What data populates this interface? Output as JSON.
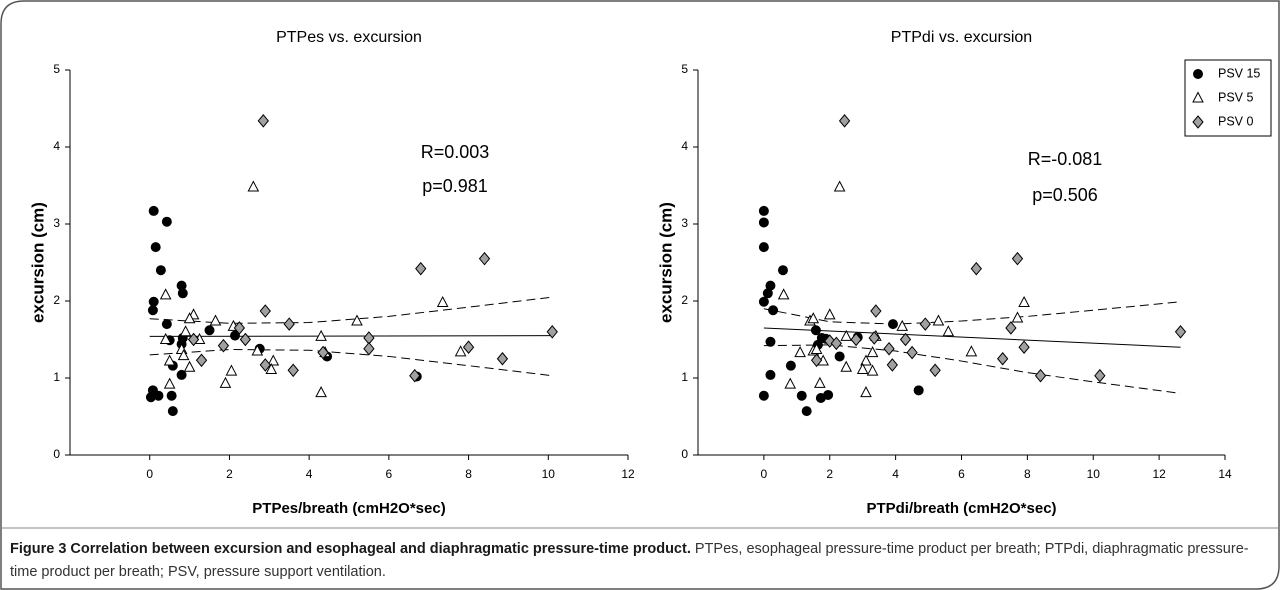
{
  "chart_data": [
    {
      "type": "scatter",
      "title": "PTPes vs. excursion",
      "xlabel": "PTPes/breath (cmH2O*sec)",
      "ylabel": "excursion (cm)",
      "xlim": [
        -2,
        12
      ],
      "xticks": [
        0,
        2,
        4,
        6,
        8,
        10,
        12
      ],
      "ylim": [
        0,
        5
      ],
      "yticks": [
        0,
        1,
        2,
        3,
        4,
        5
      ],
      "annotations": [
        "R=0.003",
        "p=0.981"
      ],
      "series": [
        {
          "marker": "circle",
          "color": "#000000",
          "x": [
            0.1,
            0.43,
            0.15,
            0.28,
            0.1,
            0.08,
            0.43,
            0.8,
            0.83,
            0.83,
            0.8,
            0.5,
            0.8,
            0.58,
            0.08,
            0.03,
            0.22,
            0.58,
            0.55,
            1.5,
            2.14,
            2.76,
            4.45,
            6.7
          ],
          "values": [
            3.17,
            3.03,
            2.7,
            2.4,
            1.99,
            1.88,
            1.7,
            2.2,
            2.1,
            1.52,
            1.44,
            1.49,
            1.04,
            1.16,
            0.84,
            0.75,
            0.77,
            0.57,
            0.77,
            1.62,
            1.55,
            1.38,
            1.28,
            1.02
          ]
        },
        {
          "marker": "triangle",
          "color": "#ffffff",
          "x": [
            2.6,
            0.4,
            7.35,
            5.2,
            1.65,
            1.1,
            1.0,
            0.9,
            2.1,
            4.3,
            2.7,
            0.8,
            0.85,
            3.1,
            3.05,
            0.5,
            1.0,
            2.05,
            1.9,
            0.5,
            4.3,
            7.8,
            1.25,
            0.4,
            4.4
          ],
          "values": [
            3.48,
            2.08,
            1.98,
            1.74,
            1.74,
            1.82,
            1.77,
            1.6,
            1.67,
            1.54,
            1.35,
            1.37,
            1.29,
            1.22,
            1.11,
            1.22,
            1.14,
            1.09,
            0.93,
            0.92,
            0.81,
            1.34,
            1.5,
            1.5,
            1.33
          ]
        },
        {
          "marker": "diamond",
          "color": "#a0a0a0",
          "x": [
            2.85,
            6.8,
            8.4,
            10.1,
            2.9,
            3.5,
            2.25,
            2.4,
            5.5,
            5.5,
            8.0,
            1.85,
            1.3,
            2.9,
            3.6,
            8.85,
            6.65,
            4.35,
            1.1
          ],
          "values": [
            4.34,
            2.42,
            2.55,
            1.6,
            1.87,
            1.7,
            1.65,
            1.5,
            1.52,
            1.38,
            1.4,
            1.42,
            1.23,
            1.17,
            1.1,
            1.25,
            1.03,
            1.33,
            1.5
          ]
        }
      ],
      "fit": {
        "x": [
          0,
          10.1
        ],
        "values": [
          1.54,
          1.55
        ]
      },
      "ci_upper": {
        "x": [
          0,
          2,
          4,
          6,
          8,
          10.1
        ],
        "values": [
          1.77,
          1.71,
          1.72,
          1.8,
          1.92,
          2.05
        ]
      },
      "ci_lower": {
        "x": [
          0,
          2,
          4,
          6,
          8,
          10.1
        ],
        "values": [
          1.3,
          1.37,
          1.36,
          1.28,
          1.16,
          1.03
        ]
      }
    },
    {
      "type": "scatter",
      "title": "PTPdi vs. excursion",
      "xlabel": "PTPdi/breath (cmH2O*sec)",
      "ylabel": "excursion (cm)",
      "xlim": [
        -2,
        14
      ],
      "xticks": [
        0,
        2,
        4,
        6,
        8,
        10,
        12,
        14
      ],
      "ylim": [
        0,
        5
      ],
      "yticks": [
        0,
        1,
        2,
        3,
        4,
        5
      ],
      "annotations": [
        "R=-0.081",
        "p=0.506"
      ],
      "legend": "upper right",
      "series": [
        {
          "name": "PSV 15",
          "marker": "circle",
          "color": "#000000",
          "x": [
            0,
            0,
            0,
            0.58,
            0.2,
            0.12,
            0,
            0.28,
            0.2,
            0.2,
            0,
            1.58,
            1.76,
            1.64,
            1.88,
            2.3,
            2.85,
            3.92,
            0.82,
            1.15,
            1.3,
            1.73,
            1.95,
            4.7
          ],
          "values": [
            3.17,
            3.02,
            2.7,
            2.4,
            2.2,
            2.1,
            1.99,
            1.88,
            1.47,
            1.04,
            0.77,
            1.62,
            1.52,
            1.43,
            1.51,
            1.28,
            1.53,
            1.7,
            1.16,
            0.77,
            0.57,
            0.74,
            0.78,
            0.84
          ]
        },
        {
          "name": "PSV 5",
          "marker": "triangle",
          "color": "#ffffff",
          "x": [
            2.3,
            0.6,
            7.9,
            5.3,
            1.4,
            2.0,
            1.5,
            2.5,
            4.2,
            3.4,
            5.6,
            7.7,
            1.5,
            1.1,
            3.3,
            1.6,
            3.1,
            3.0,
            1.8,
            2.5,
            0.8,
            1.7,
            3.3,
            3.1,
            6.3
          ],
          "values": [
            3.48,
            2.08,
            1.98,
            1.74,
            1.74,
            1.82,
            1.77,
            1.54,
            1.67,
            1.54,
            1.6,
            1.78,
            1.35,
            1.33,
            1.33,
            1.37,
            1.22,
            1.11,
            1.22,
            1.14,
            0.92,
            0.93,
            1.09,
            0.81,
            1.34
          ]
        },
        {
          "name": "PSV 0",
          "marker": "diamond",
          "color": "#a0a0a0",
          "x": [
            2.45,
            6.45,
            7.7,
            12.65,
            3.4,
            4.9,
            7.5,
            4.3,
            3.35,
            7.9,
            2.0,
            2.2,
            3.8,
            1.6,
            5.2,
            3.9,
            7.25,
            10.2,
            8.4,
            4.5,
            2.8
          ],
          "values": [
            4.34,
            2.42,
            2.55,
            1.6,
            1.87,
            1.7,
            1.65,
            1.5,
            1.52,
            1.4,
            1.48,
            1.45,
            1.38,
            1.23,
            1.1,
            1.17,
            1.25,
            1.03,
            1.03,
            1.33,
            1.5
          ]
        }
      ],
      "fit": {
        "x": [
          0,
          12.65
        ],
        "values": [
          1.65,
          1.4
        ]
      },
      "ci_upper": {
        "x": [
          0,
          2,
          4,
          6,
          8,
          10,
          12.65
        ],
        "values": [
          1.9,
          1.73,
          1.7,
          1.74,
          1.8,
          1.88,
          1.99
        ]
      },
      "ci_lower": {
        "x": [
          0,
          2,
          4,
          6,
          8,
          10,
          12.65
        ],
        "values": [
          1.42,
          1.43,
          1.35,
          1.22,
          1.07,
          0.95,
          0.8
        ]
      }
    }
  ],
  "caption": {
    "title": "Figure 3 Correlation between excursion and esophageal and diaphragmatic pressure-time product.",
    "text": "PTPes, esophageal pressure-time product per breath; PTPdi, diaphragmatic pressure-time product per breath; PSV, pressure support ventilation."
  }
}
